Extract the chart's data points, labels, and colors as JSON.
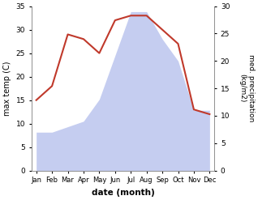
{
  "months": [
    "Jan",
    "Feb",
    "Mar",
    "Apr",
    "May",
    "Jun",
    "Jul",
    "Aug",
    "Sep",
    "Oct",
    "Nov",
    "Dec"
  ],
  "temperature": [
    15,
    18,
    29,
    28,
    25,
    32,
    33,
    33,
    30,
    27,
    13,
    12
  ],
  "precipitation": [
    7,
    7,
    8,
    9,
    13,
    21,
    29,
    29,
    24,
    20,
    11,
    11
  ],
  "temp_color": "#c0392b",
  "precip_fill_color": "#c5cdf0",
  "left_label": "max temp (C)",
  "right_label": "med. precipitation\n(kg/m2)",
  "xlabel": "date (month)",
  "ylim_left": [
    0,
    35
  ],
  "ylim_right": [
    0,
    30
  ],
  "left_ticks": [
    0,
    5,
    10,
    15,
    20,
    25,
    30,
    35
  ],
  "right_ticks": [
    0,
    5,
    10,
    15,
    20,
    25,
    30
  ],
  "bg_color": "#ffffff",
  "fig_width": 3.18,
  "fig_height": 2.47,
  "dpi": 100
}
